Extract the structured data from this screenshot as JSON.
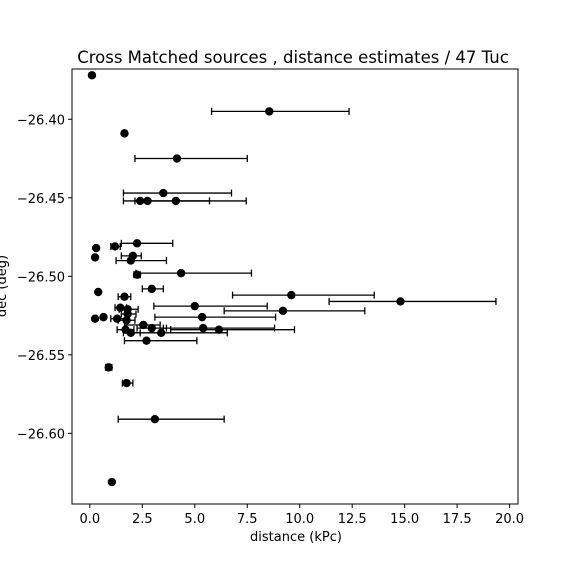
{
  "chart_data": {
    "type": "scatter",
    "title": "Cross Matched sources , distance estimates / 47 Tuc",
    "xlabel": "distance (kPc)",
    "ylabel": "dec (deg)",
    "xlim": [
      -0.85,
      20.4
    ],
    "ylim": [
      -26.645,
      -26.368
    ],
    "x_ticks": [
      0.0,
      2.5,
      5.0,
      7.5,
      10.0,
      12.5,
      15.0,
      17.5,
      20.0
    ],
    "x_tick_labels": [
      "0.0",
      "2.5",
      "5.0",
      "7.5",
      "10.0",
      "12.5",
      "15.0",
      "17.5",
      "20.0"
    ],
    "y_ticks": [
      -26.4,
      -26.45,
      -26.5,
      -26.55,
      -26.6
    ],
    "y_tick_labels": [
      "−26.40",
      "−26.45",
      "−26.50",
      "−26.55",
      "−26.60"
    ],
    "grid": false,
    "legend": "none",
    "marker_color": "#000000",
    "points": [
      {
        "x": 0.1,
        "y": -26.372
      },
      {
        "x": 8.55,
        "y": -26.395,
        "xerr": [
          5.8,
          12.35
        ]
      },
      {
        "x": 1.65,
        "y": -26.409
      },
      {
        "x": 4.15,
        "y": -26.425,
        "xerr": [
          2.15,
          7.5
        ]
      },
      {
        "x": 3.5,
        "y": -26.447,
        "xerr": [
          1.6,
          6.75
        ]
      },
      {
        "x": 4.1,
        "y": -26.452,
        "xerr": [
          2.15,
          7.45
        ]
      },
      {
        "x": 2.4,
        "y": -26.452,
        "xerr": [
          1.6,
          5.7
        ]
      },
      {
        "x": 2.75,
        "y": -26.452
      },
      {
        "x": 2.25,
        "y": -26.479,
        "xerr": [
          1.5,
          3.95
        ]
      },
      {
        "x": 1.2,
        "y": -26.481,
        "xerr": [
          1.0,
          1.45
        ]
      },
      {
        "x": 0.3,
        "y": -26.482
      },
      {
        "x": 2.05,
        "y": -26.487,
        "xerr": [
          1.5,
          2.45
        ]
      },
      {
        "x": 0.25,
        "y": -26.488
      },
      {
        "x": 1.95,
        "y": -26.49,
        "xerr": [
          1.25,
          3.65
        ]
      },
      {
        "x": 4.35,
        "y": -26.498,
        "xerr": [
          2.2,
          7.7
        ]
      },
      {
        "x": 2.25,
        "y": -26.499,
        "xerr": [
          2.1,
          2.4
        ]
      },
      {
        "x": 2.95,
        "y": -26.508,
        "xerr": [
          2.5,
          3.5
        ]
      },
      {
        "x": 0.4,
        "y": -26.51
      },
      {
        "x": 9.6,
        "y": -26.512,
        "xerr": [
          6.8,
          13.55
        ]
      },
      {
        "x": 1.65,
        "y": -26.513,
        "xerr": [
          1.35,
          1.95
        ]
      },
      {
        "x": 14.8,
        "y": -26.516,
        "xerr": [
          11.4,
          19.35
        ]
      },
      {
        "x": 5.0,
        "y": -26.519,
        "xerr": [
          3.05,
          8.45
        ]
      },
      {
        "x": 1.45,
        "y": -26.52,
        "xerr": [
          1.2,
          1.75
        ]
      },
      {
        "x": 1.8,
        "y": -26.521,
        "xerr": [
          1.4,
          2.3
        ]
      },
      {
        "x": 9.2,
        "y": -26.522,
        "xerr": [
          6.4,
          13.1
        ]
      },
      {
        "x": 1.8,
        "y": -26.524,
        "xerr": [
          1.5,
          2.2
        ]
      },
      {
        "x": 0.65,
        "y": -26.526
      },
      {
        "x": 5.35,
        "y": -26.526,
        "xerr": [
          3.1,
          8.85
        ]
      },
      {
        "x": 1.3,
        "y": -26.527,
        "xerr": [
          1.0,
          1.8
        ]
      },
      {
        "x": 0.25,
        "y": -26.527
      },
      {
        "x": 1.75,
        "y": -26.528,
        "xerr": [
          1.35,
          2.15
        ]
      },
      {
        "x": 2.55,
        "y": -26.531,
        "xerr": [
          1.65,
          3.35
        ]
      },
      {
        "x": 2.95,
        "y": -26.533,
        "xerr": [
          2.25,
          3.65
        ]
      },
      {
        "x": 5.4,
        "y": -26.533,
        "xerr": [
          3.5,
          8.8
        ]
      },
      {
        "x": 1.7,
        "y": -26.534,
        "xerr": [
          1.3,
          2.1
        ]
      },
      {
        "x": 6.15,
        "y": -26.534,
        "xerr": [
          3.85,
          9.75
        ]
      },
      {
        "x": 1.95,
        "y": -26.536,
        "xerr": [
          1.6,
          2.4
        ]
      },
      {
        "x": 3.4,
        "y": -26.536,
        "xerr": [
          1.95,
          6.55
        ]
      },
      {
        "x": 2.7,
        "y": -26.541,
        "xerr": [
          1.65,
          5.1
        ]
      },
      {
        "x": 0.9,
        "y": -26.558,
        "xerr": [
          0.75,
          1.05
        ]
      },
      {
        "x": 1.75,
        "y": -26.568,
        "xerr": [
          1.55,
          2.05
        ]
      },
      {
        "x": 3.1,
        "y": -26.591,
        "xerr": [
          1.35,
          6.4
        ]
      },
      {
        "x": 1.05,
        "y": -26.631
      }
    ]
  }
}
